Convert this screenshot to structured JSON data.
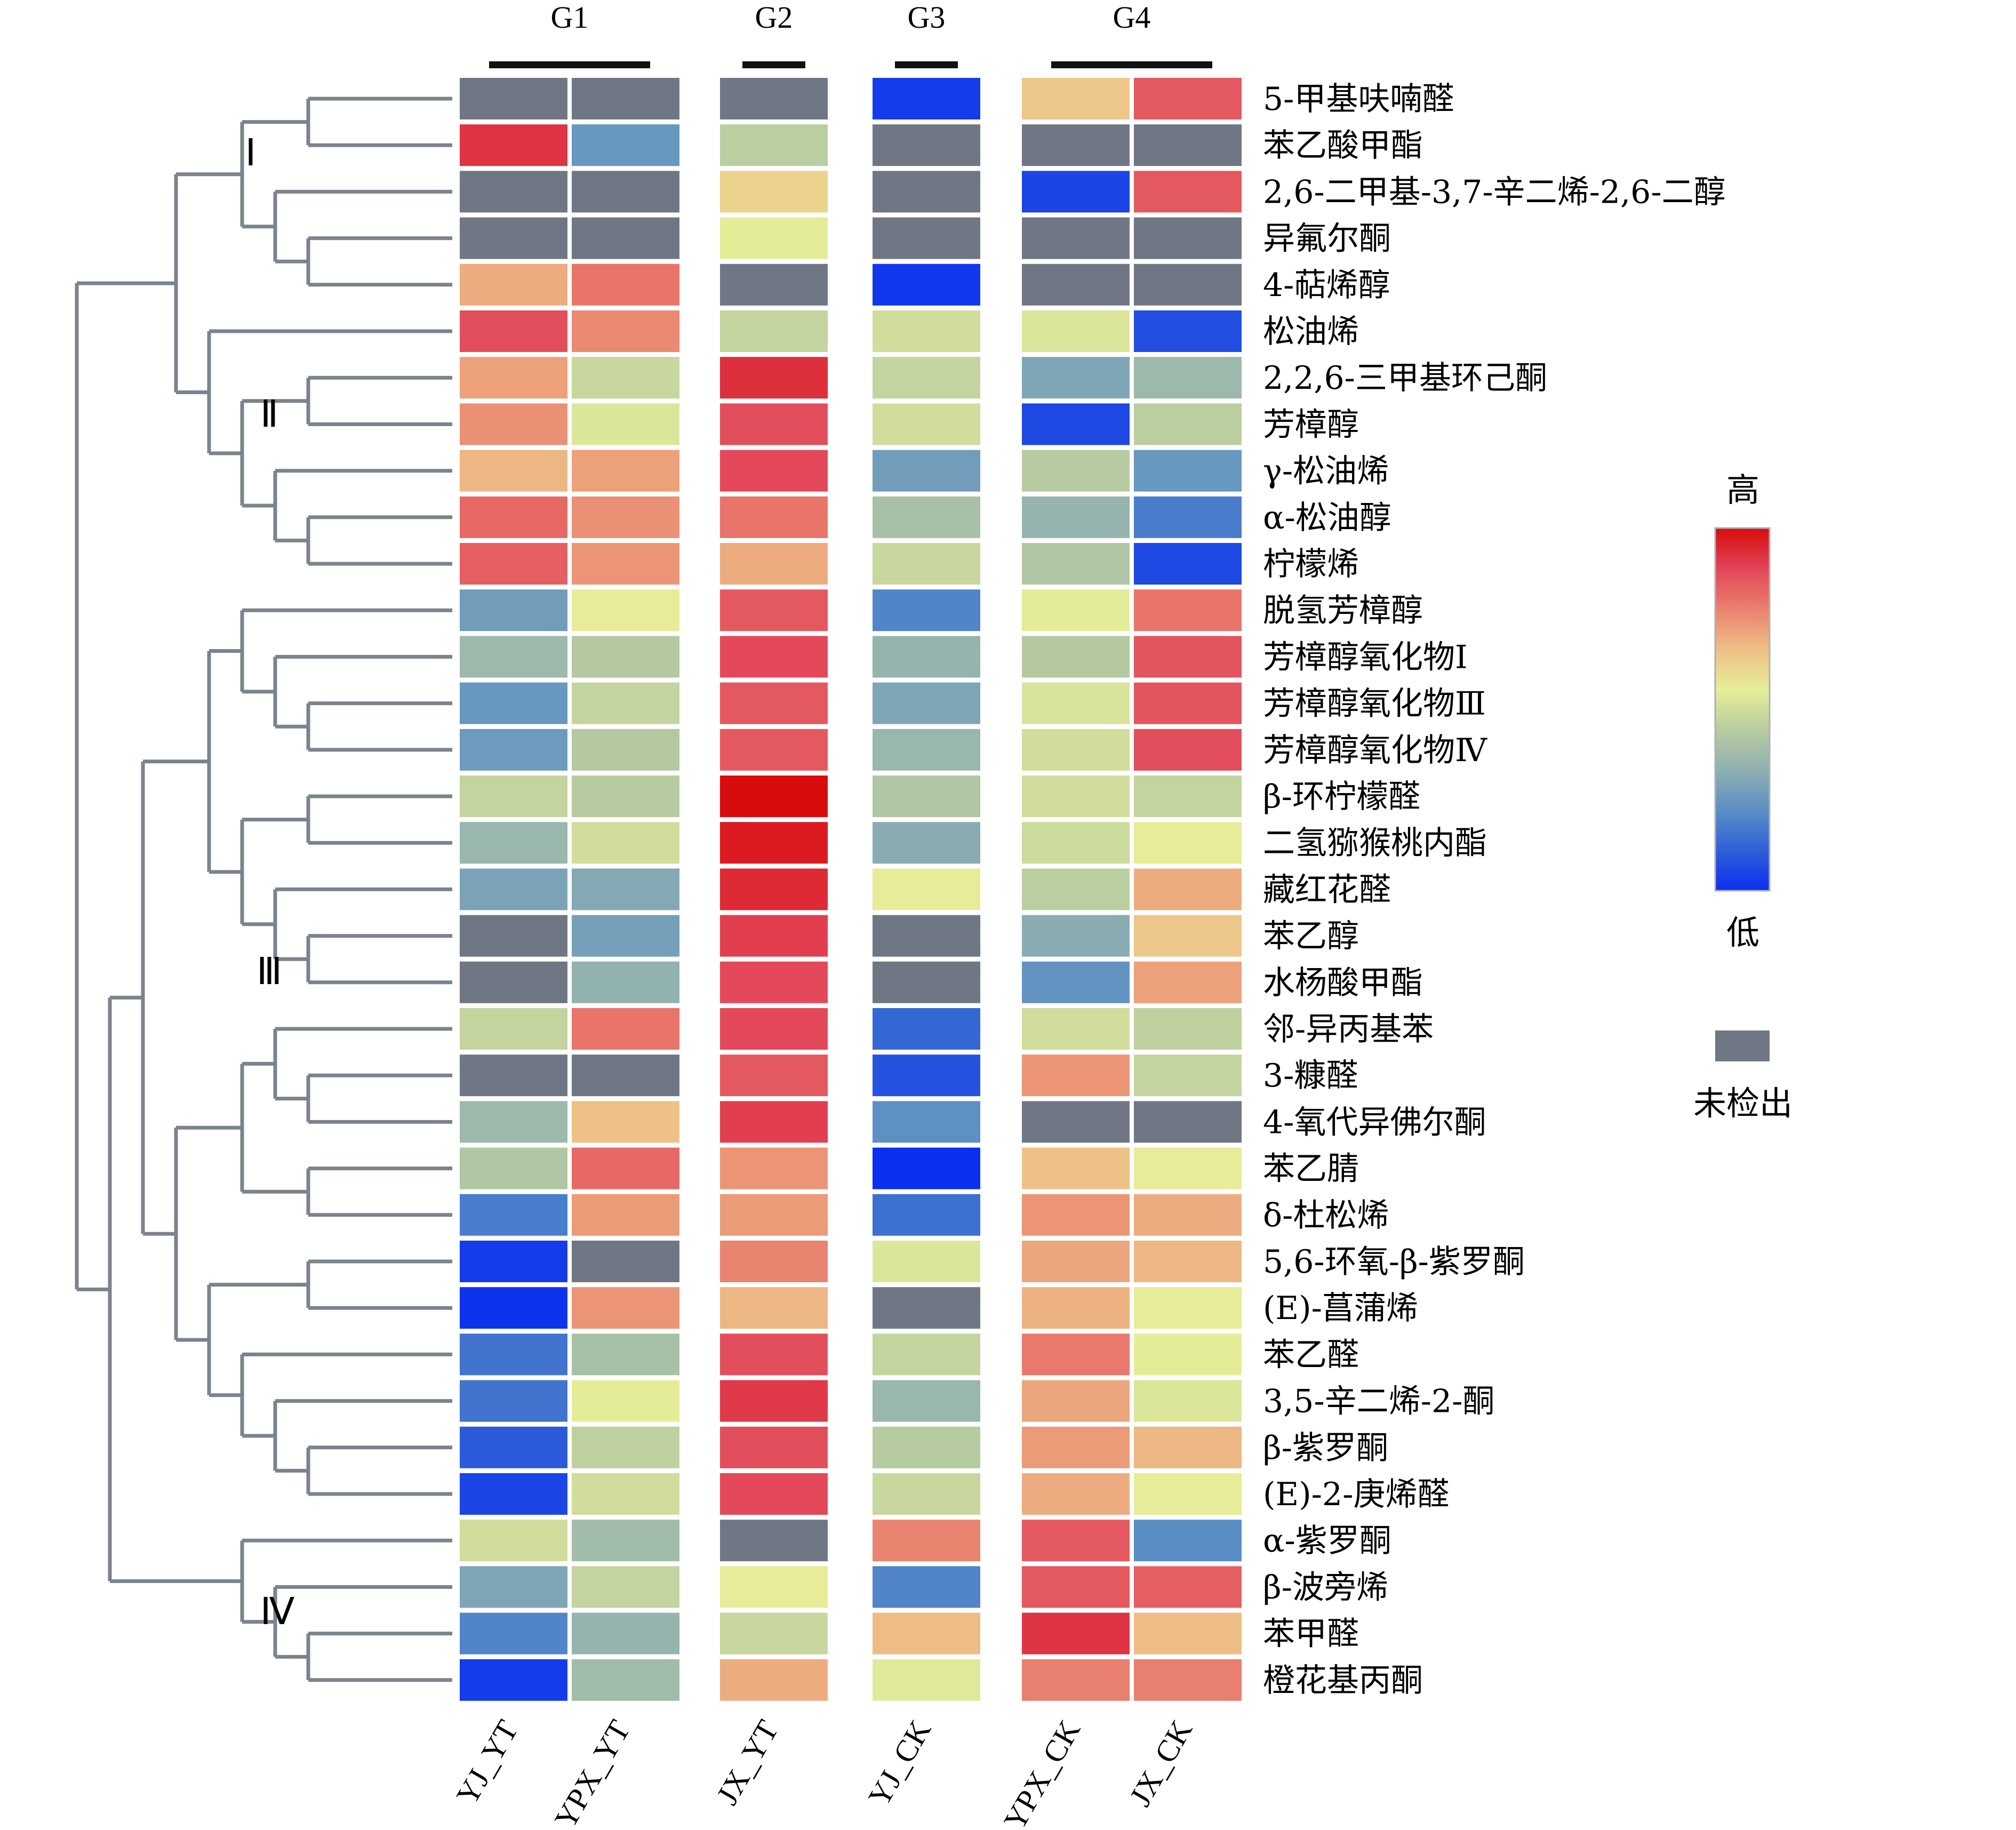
{
  "chart_data": {
    "type": "heatmap",
    "title": "",
    "groups": [
      {
        "label": "G1",
        "columns": [
          "YJ_YT",
          "YPX_YT"
        ]
      },
      {
        "label": "G2",
        "columns": [
          "JX_YT"
        ]
      },
      {
        "label": "G3",
        "columns": [
          "YJ_CK"
        ]
      },
      {
        "label": "G4",
        "columns": [
          "YPX_CK",
          "JX_CK"
        ]
      }
    ],
    "columns": [
      "YJ_YT",
      "YPX_YT",
      "JX_YT",
      "YJ_CK",
      "YPX_CK",
      "JX_CK"
    ],
    "rows": [
      "5-甲基呋喃醛",
      "苯乙酸甲酯",
      "2,6-二甲基-3,7-辛二烯-2,6-二醇",
      "异氟尔酮",
      "4-萜烯醇",
      "松油烯",
      "2,2,6-三甲基环己酮",
      "芳樟醇",
      "γ-松油烯",
      "α-松油醇",
      "柠檬烯",
      "脱氢芳樟醇",
      "芳樟醇氧化物Ⅰ",
      "芳樟醇氧化物Ⅲ",
      "芳樟醇氧化物Ⅳ",
      "β-环柠檬醛",
      "二氢猕猴桃内酯",
      "藏红花醛",
      "苯乙醇",
      "水杨酸甲酯",
      "邻-异丙基苯",
      "3-糠醛",
      "4-氧代异佛尔酮",
      "苯乙腈",
      "δ-杜松烯",
      "5,6-环氧-β-紫罗酮",
      "(E)-菖蒲烯",
      "苯乙醛",
      "3,5-辛二烯-2-酮",
      "β-紫罗酮",
      "(E)-2-庚烯醛",
      "α-紫罗酮",
      "β-波旁烯",
      "苯甲醛",
      "橙花基丙酮"
    ],
    "values_note": "relative level, 0 = low (blue) to 1 = high (red); null = not detected (grey)",
    "values": [
      [
        null,
        null,
        null,
        0.03,
        0.65,
        0.85
      ],
      [
        0.92,
        0.25,
        0.45,
        null,
        null,
        null
      ],
      [
        null,
        null,
        0.62,
        null,
        0.05,
        0.85
      ],
      [
        null,
        null,
        0.55,
        null,
        null,
        null
      ],
      [
        0.7,
        0.8,
        null,
        0.02,
        null,
        null
      ],
      [
        0.87,
        0.76,
        0.47,
        0.5,
        0.53,
        0.07
      ],
      [
        0.72,
        0.48,
        0.93,
        0.47,
        0.3,
        0.37
      ],
      [
        0.75,
        0.53,
        0.87,
        0.5,
        0.06,
        0.45
      ],
      [
        0.68,
        0.72,
        0.88,
        0.27,
        0.44,
        0.25
      ],
      [
        0.82,
        0.75,
        0.8,
        0.4,
        0.35,
        0.18
      ],
      [
        0.84,
        0.74,
        0.7,
        0.48,
        0.42,
        0.06
      ],
      [
        0.27,
        0.56,
        0.85,
        0.2,
        0.55,
        0.8
      ],
      [
        0.37,
        0.43,
        0.88,
        0.35,
        0.43,
        0.86
      ],
      [
        0.25,
        0.47,
        0.85,
        0.3,
        0.52,
        0.86
      ],
      [
        0.26,
        0.43,
        0.85,
        0.36,
        0.5,
        0.87
      ],
      [
        0.47,
        0.44,
        1.0,
        0.42,
        0.5,
        0.47
      ],
      [
        0.36,
        0.5,
        0.97,
        0.32,
        0.49,
        0.56
      ],
      [
        0.29,
        0.31,
        0.94,
        0.56,
        0.45,
        0.7
      ],
      [
        null,
        0.28,
        0.9,
        null,
        0.32,
        0.65
      ],
      [
        null,
        0.34,
        0.88,
        null,
        0.24,
        0.72
      ],
      [
        0.47,
        0.8,
        0.88,
        0.13,
        0.5,
        0.46
      ],
      [
        null,
        null,
        0.85,
        0.08,
        0.74,
        0.47
      ],
      [
        0.37,
        0.66,
        0.9,
        0.23,
        null,
        null
      ],
      [
        0.42,
        0.82,
        0.74,
        0.0,
        0.66,
        0.56
      ],
      [
        0.18,
        0.73,
        0.73,
        0.15,
        0.74,
        0.7
      ],
      [
        0.03,
        null,
        0.77,
        0.53,
        0.71,
        0.68
      ],
      [
        0.01,
        0.74,
        0.68,
        null,
        0.69,
        0.56
      ],
      [
        0.16,
        0.4,
        0.87,
        0.47,
        0.79,
        0.55
      ],
      [
        0.16,
        0.55,
        0.91,
        0.36,
        0.71,
        0.53
      ],
      [
        0.1,
        0.46,
        0.87,
        0.44,
        0.73,
        0.68
      ],
      [
        0.05,
        0.5,
        0.88,
        0.48,
        0.7,
        0.56
      ],
      [
        0.5,
        0.38,
        null,
        0.77,
        0.85,
        0.22
      ],
      [
        0.3,
        0.47,
        0.56,
        0.2,
        0.85,
        0.84
      ],
      [
        0.2,
        0.35,
        0.48,
        0.67,
        0.92,
        0.67
      ],
      [
        0.03,
        0.38,
        0.7,
        0.54,
        0.78,
        0.78
      ]
    ],
    "clusters": [
      {
        "label": "Ⅰ",
        "rows": [
          0,
          4
        ]
      },
      {
        "label": "Ⅱ",
        "rows": [
          5,
          10
        ]
      },
      {
        "label": "Ⅲ",
        "rows": [
          11,
          30
        ]
      },
      {
        "label": "Ⅳ",
        "rows": [
          31,
          34
        ]
      }
    ],
    "legend": {
      "high_label": "高",
      "low_label": "低",
      "missing_label": "未检出",
      "colorscale": [
        "#0b2ff0",
        "#2f60d8",
        "#5b8ec4",
        "#8fb0b0",
        "#b9cca0",
        "#e6ee98",
        "#eebf86",
        "#e9806e",
        "#e24458",
        "#d80c0c"
      ],
      "missing_color": "#707784"
    },
    "xlabel": "",
    "ylabel": ""
  }
}
